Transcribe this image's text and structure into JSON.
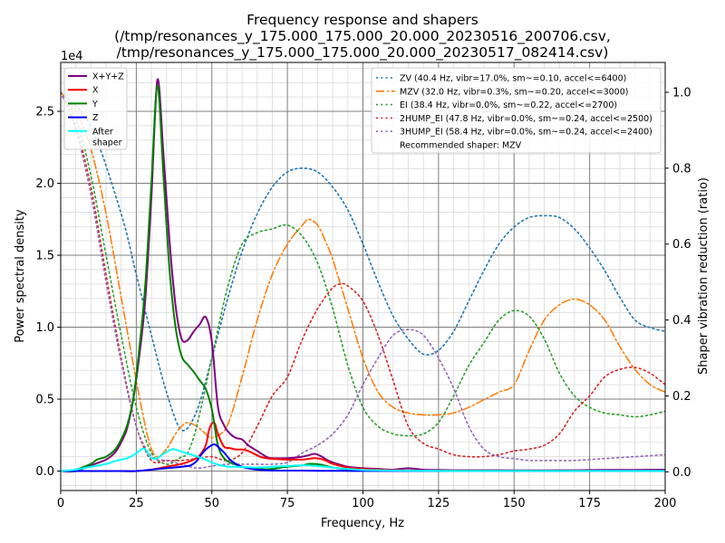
{
  "chart_data": {
    "type": "line",
    "title_lines": [
      "Frequency response and shapers",
      "(/tmp/resonances_y_175.000_175.000_20.000_20230516_200706.csv,",
      "/tmp/resonances_y_175.000_175.000_20.000_20230517_082414.csv)"
    ],
    "xlabel": "Frequency, Hz",
    "ylabel": "Power spectral density",
    "y2label": "Shaper vibration reduction (ratio)",
    "y_offset_text": "1e4",
    "xlim": [
      0,
      200
    ],
    "ylim": [
      -1350,
      28400
    ],
    "y2lim": [
      -0.0492,
      1.0786
    ],
    "x_ticks": [
      0,
      25,
      50,
      75,
      100,
      125,
      150,
      175,
      200
    ],
    "x_tick_labels": [
      "0",
      "25",
      "50",
      "75",
      "100",
      "125",
      "150",
      "175",
      "200"
    ],
    "y_ticks": [
      0,
      5000,
      10000,
      15000,
      20000,
      25000
    ],
    "y_tick_labels": [
      "0.0",
      "0.5",
      "1.0",
      "1.5",
      "2.0",
      "2.5"
    ],
    "y2_ticks": [
      0,
      0.2,
      0.4,
      0.6,
      0.8,
      1.0
    ],
    "y2_tick_labels": [
      "0.0",
      "0.2",
      "0.4",
      "0.6",
      "0.8",
      "1.0"
    ],
    "grid": true,
    "legend_left": {
      "placement": "top-left"
    },
    "legend_right": {
      "placement": "top-right"
    },
    "psd_series": [
      {
        "name": "X+Y+Z",
        "color": "#800080",
        "width": 2,
        "x": [
          0,
          5,
          10,
          15,
          18,
          20,
          22,
          24,
          26,
          28,
          30,
          32,
          34,
          36,
          38,
          40,
          42,
          44,
          46,
          48,
          50,
          52,
          54,
          56,
          58,
          60,
          62,
          65,
          68,
          70,
          75,
          78,
          80,
          82,
          84,
          86,
          88,
          90,
          95,
          100,
          105,
          110,
          115,
          120,
          125,
          130,
          140,
          150,
          160,
          170,
          180,
          190,
          200
        ],
        "y": [
          0,
          0,
          400,
          800,
          1300,
          2000,
          3000,
          5000,
          8000,
          12000,
          19000,
          27200,
          22000,
          16000,
          11500,
          9200,
          9100,
          9700,
          10200,
          10700,
          9000,
          4500,
          3200,
          2600,
          2300,
          2200,
          1800,
          1400,
          1000,
          900,
          900,
          950,
          1000,
          1100,
          1200,
          1050,
          800,
          600,
          300,
          200,
          150,
          100,
          200,
          100,
          80,
          60,
          60,
          50,
          50,
          60,
          80,
          80,
          100
        ]
      },
      {
        "name": "X",
        "color": "#ff0000",
        "width": 2,
        "x": [
          0,
          10,
          20,
          25,
          30,
          35,
          40,
          44,
          46,
          48,
          49,
          50,
          51,
          52,
          54,
          56,
          58,
          60,
          62,
          64,
          66,
          68,
          70,
          75,
          80,
          82,
          84,
          86,
          88,
          90,
          95,
          100,
          110,
          120,
          130,
          150,
          175,
          200
        ],
        "y": [
          0,
          0,
          0,
          0,
          100,
          300,
          500,
          800,
          1100,
          1800,
          2800,
          3300,
          3300,
          2600,
          1700,
          1600,
          1500,
          1500,
          1400,
          1200,
          1000,
          900,
          850,
          800,
          800,
          850,
          900,
          850,
          700,
          500,
          250,
          150,
          60,
          40,
          30,
          20,
          20,
          20
        ]
      },
      {
        "name": "Y",
        "color": "#008000",
        "width": 2,
        "x": [
          0,
          5,
          10,
          12,
          15,
          18,
          20,
          22,
          24,
          26,
          28,
          30,
          32,
          34,
          36,
          38,
          40,
          42,
          44,
          46,
          48,
          50,
          52,
          54,
          56,
          58,
          60,
          62,
          65,
          68,
          70,
          75,
          80,
          82,
          84,
          86,
          88,
          90,
          95,
          100,
          110,
          120,
          130,
          150,
          175,
          200
        ],
        "y": [
          0,
          100,
          500,
          800,
          1000,
          1500,
          2200,
          3200,
          5000,
          8500,
          13000,
          20000,
          26800,
          20500,
          14000,
          10000,
          8000,
          7400,
          6900,
          6300,
          5700,
          4300,
          1800,
          900,
          600,
          450,
          300,
          200,
          150,
          120,
          150,
          300,
          400,
          500,
          500,
          450,
          350,
          250,
          120,
          60,
          30,
          20,
          20,
          10,
          10,
          10
        ]
      },
      {
        "name": "Z",
        "color": "#0000ff",
        "width": 2,
        "x": [
          0,
          20,
          25,
          30,
          35,
          40,
          43,
          45,
          46,
          48,
          50,
          51,
          52,
          54,
          56,
          58,
          60,
          63,
          66,
          70,
          75,
          80,
          85,
          90,
          100,
          110,
          120,
          130,
          150,
          175,
          200
        ],
        "y": [
          0,
          0,
          0,
          100,
          200,
          300,
          400,
          700,
          1000,
          1500,
          1800,
          1850,
          1700,
          1300,
          800,
          500,
          300,
          150,
          80,
          40,
          30,
          30,
          20,
          20,
          10,
          10,
          10,
          10,
          10,
          10,
          10
        ]
      },
      {
        "name": "After\nshaper",
        "color": "#00ffff",
        "width": 2,
        "x": [
          0,
          5,
          10,
          15,
          18,
          20,
          22,
          24,
          26,
          27,
          28,
          29,
          30,
          32,
          34,
          36,
          37,
          38,
          40,
          42,
          44,
          46,
          48,
          50,
          52,
          54,
          56,
          58,
          60,
          65,
          70,
          75,
          80,
          85,
          90,
          95,
          100,
          110,
          120,
          130,
          150,
          175,
          200
        ],
        "y": [
          0,
          100,
          300,
          500,
          700,
          800,
          900,
          1100,
          1400,
          1550,
          1500,
          1200,
          900,
          900,
          1200,
          1450,
          1520,
          1500,
          1350,
          1200,
          1100,
          950,
          800,
          600,
          450,
          350,
          300,
          300,
          280,
          250,
          300,
          350,
          400,
          350,
          250,
          150,
          80,
          40,
          20,
          10,
          10,
          10,
          10
        ]
      }
    ],
    "shaper_series": [
      {
        "name": "ZV (40.4 Hz, vibr=17.0%, sm~=0.10, accel<=6400)",
        "color": "#1f77b4",
        "style": "dotted",
        "x": [
          0,
          10,
          20,
          25,
          30,
          35,
          40,
          45,
          50,
          55,
          60,
          65,
          70,
          75,
          80,
          85,
          90,
          95,
          100,
          105,
          110,
          115,
          120,
          125,
          130,
          135,
          140,
          145,
          150,
          155,
          160,
          165,
          170,
          175,
          180,
          185,
          190,
          195,
          200
        ],
        "y": [
          1.0,
          0.91,
          0.68,
          0.52,
          0.36,
          0.21,
          0.11,
          0.16,
          0.3,
          0.45,
          0.58,
          0.68,
          0.75,
          0.79,
          0.8,
          0.79,
          0.75,
          0.69,
          0.6,
          0.5,
          0.41,
          0.35,
          0.31,
          0.32,
          0.37,
          0.45,
          0.53,
          0.6,
          0.645,
          0.67,
          0.675,
          0.67,
          0.64,
          0.59,
          0.53,
          0.46,
          0.4,
          0.38,
          0.37
        ]
      },
      {
        "name": "MZV (32.0 Hz, vibr=0.3%, sm~=0.20, accel<=3000)",
        "color": "#ff7f0e",
        "style": "dashdot",
        "x": [
          0,
          5,
          10,
          15,
          20,
          25,
          28,
          30,
          32,
          35,
          38,
          40,
          42,
          45,
          48,
          50,
          55,
          60,
          65,
          70,
          75,
          80,
          82,
          85,
          88,
          90,
          95,
          100,
          105,
          110,
          115,
          120,
          125,
          130,
          135,
          140,
          145,
          150,
          155,
          160,
          165,
          170,
          175,
          180,
          185,
          190,
          195,
          200
        ],
        "y": [
          1.0,
          0.95,
          0.85,
          0.68,
          0.46,
          0.24,
          0.12,
          0.06,
          0.04,
          0.06,
          0.1,
          0.12,
          0.13,
          0.12,
          0.1,
          0.09,
          0.12,
          0.25,
          0.4,
          0.52,
          0.6,
          0.65,
          0.665,
          0.65,
          0.6,
          0.56,
          0.43,
          0.3,
          0.21,
          0.17,
          0.155,
          0.15,
          0.15,
          0.155,
          0.17,
          0.19,
          0.21,
          0.23,
          0.32,
          0.4,
          0.44,
          0.455,
          0.44,
          0.4,
          0.33,
          0.27,
          0.23,
          0.21
        ]
      },
      {
        "name": "EI (38.4 Hz, vibr=0.0%, sm~=0.22, accel<=2700)",
        "color": "#2ca02c",
        "style": "dotted",
        "x": [
          0,
          5,
          10,
          15,
          20,
          25,
          30,
          35,
          38,
          40,
          42,
          45,
          50,
          55,
          60,
          65,
          70,
          75,
          80,
          85,
          90,
          95,
          100,
          105,
          110,
          115,
          120,
          125,
          130,
          135,
          140,
          145,
          150,
          155,
          160,
          165,
          170,
          175,
          180,
          185,
          190,
          195,
          200
        ],
        "y": [
          1.0,
          0.93,
          0.78,
          0.57,
          0.36,
          0.17,
          0.05,
          0.02,
          0.03,
          0.04,
          0.05,
          0.12,
          0.3,
          0.48,
          0.6,
          0.63,
          0.64,
          0.65,
          0.62,
          0.55,
          0.43,
          0.28,
          0.17,
          0.12,
          0.1,
          0.095,
          0.1,
          0.13,
          0.2,
          0.28,
          0.34,
          0.4,
          0.425,
          0.41,
          0.35,
          0.26,
          0.2,
          0.17,
          0.155,
          0.15,
          0.145,
          0.15,
          0.16
        ]
      },
      {
        "name": "2HUMP_EI (47.8 Hz, vibr=0.0%, sm~=0.24, accel<=2500)",
        "color": "#d62728",
        "style": "dotted",
        "x": [
          0,
          5,
          10,
          15,
          20,
          25,
          30,
          35,
          40,
          45,
          50,
          55,
          60,
          65,
          70,
          75,
          80,
          85,
          90,
          93,
          95,
          100,
          105,
          110,
          115,
          120,
          125,
          130,
          135,
          140,
          145,
          150,
          155,
          160,
          165,
          170,
          175,
          180,
          185,
          190,
          195,
          200
        ],
        "y": [
          1.0,
          0.91,
          0.75,
          0.52,
          0.3,
          0.12,
          0.03,
          0.03,
          0.03,
          0.035,
          0.04,
          0.03,
          0.05,
          0.12,
          0.2,
          0.25,
          0.35,
          0.43,
          0.485,
          0.495,
          0.49,
          0.45,
          0.36,
          0.24,
          0.12,
          0.075,
          0.06,
          0.045,
          0.04,
          0.04,
          0.045,
          0.055,
          0.06,
          0.07,
          0.1,
          0.16,
          0.2,
          0.25,
          0.27,
          0.275,
          0.26,
          0.23
        ]
      },
      {
        "name": "3HUMP_EI (58.4 Hz, vibr=0.0%, sm~=0.24, accel<=2400)",
        "color": "#9467bd",
        "style": "dotted",
        "x": [
          0,
          5,
          10,
          15,
          20,
          25,
          30,
          35,
          40,
          45,
          50,
          55,
          60,
          65,
          70,
          75,
          80,
          85,
          90,
          95,
          100,
          105,
          110,
          115,
          120,
          125,
          130,
          135,
          140,
          145,
          150,
          155,
          160,
          170,
          180,
          190,
          200
        ],
        "y": [
          1.0,
          0.9,
          0.73,
          0.5,
          0.29,
          0.12,
          0.04,
          0.03,
          0.02,
          0.01,
          0.015,
          0.02,
          0.02,
          0.02,
          0.02,
          0.025,
          0.05,
          0.07,
          0.1,
          0.15,
          0.23,
          0.3,
          0.36,
          0.375,
          0.36,
          0.3,
          0.22,
          0.12,
          0.06,
          0.04,
          0.035,
          0.03,
          0.03,
          0.03,
          0.035,
          0.04,
          0.045
        ]
      }
    ],
    "recommendation_text": "Recommended shaper: MZV"
  }
}
